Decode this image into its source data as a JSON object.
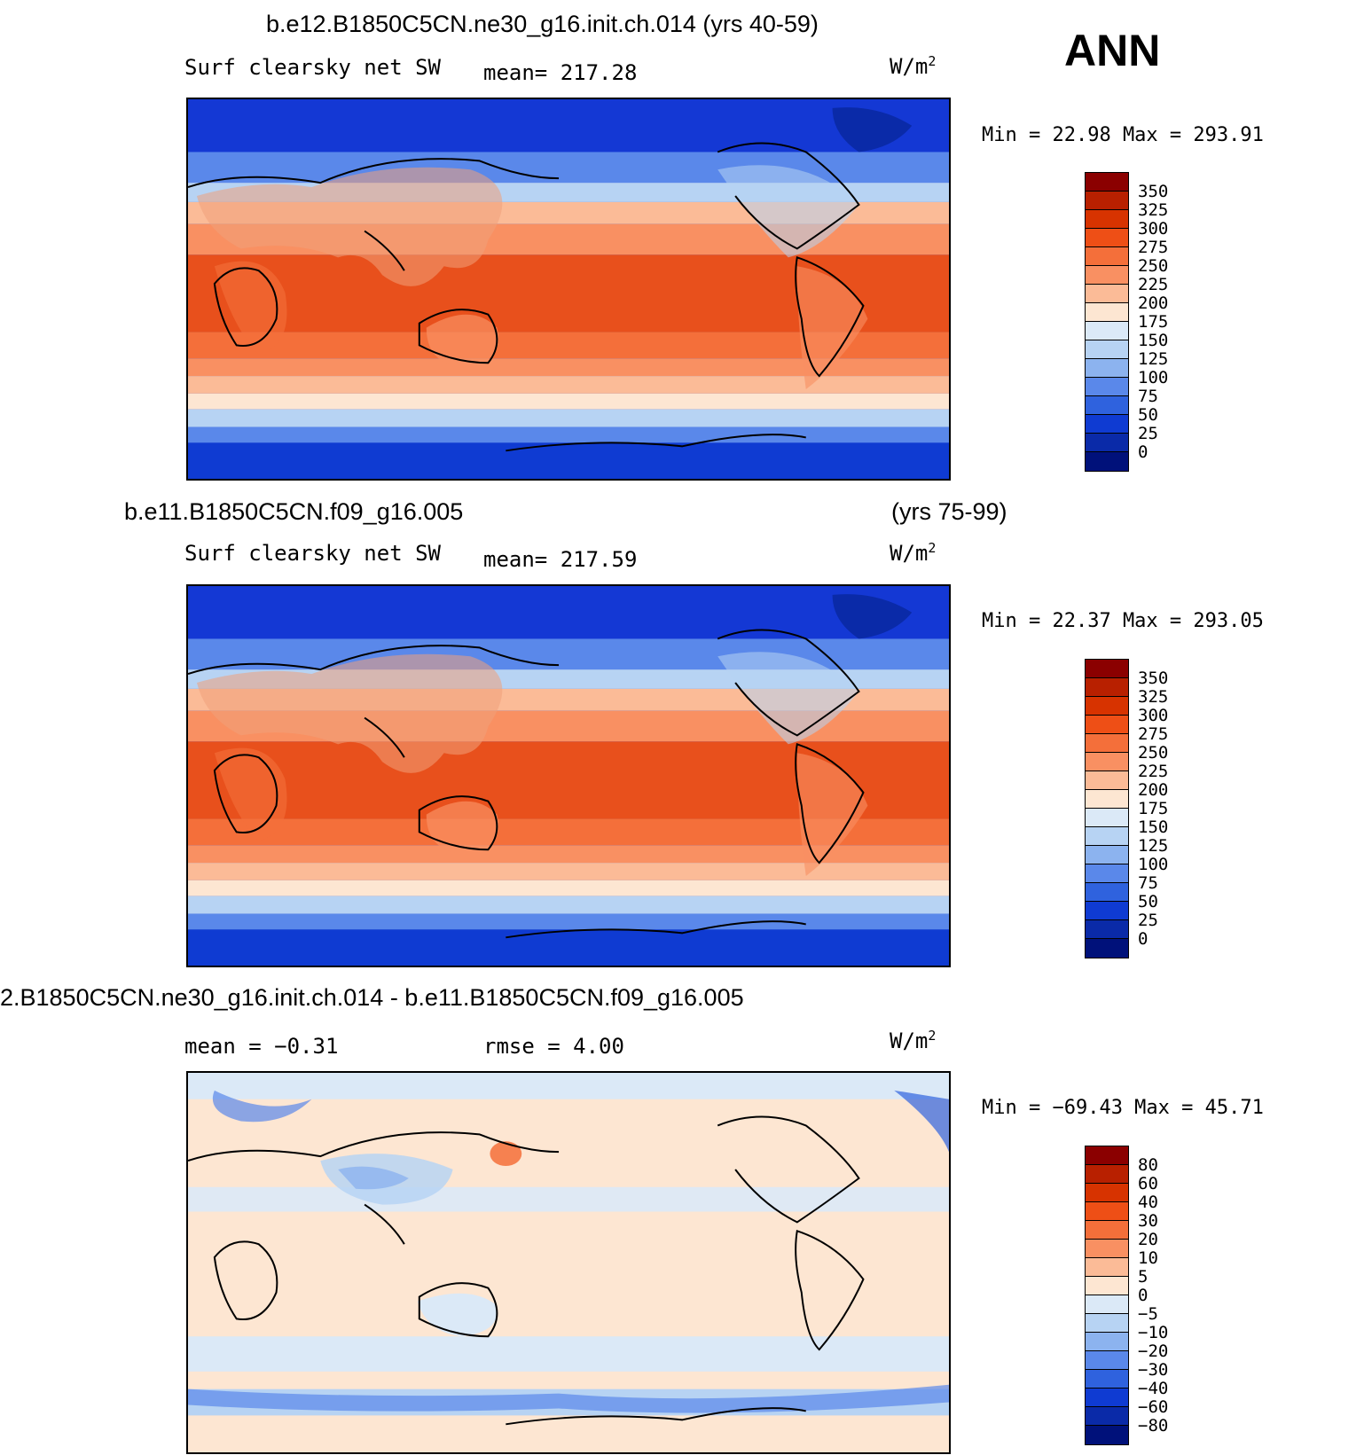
{
  "season": "ANN",
  "panels": [
    {
      "case": "b.e12.B1850C5CN.ne30_g16.init.ch.014 (yrs 40-59)",
      "case_years": "",
      "variable": "Surf clearsky net SW",
      "stat1": "mean= 217.28",
      "stat2": "",
      "units": "W/m",
      "units_sup": "2",
      "minmax": "Min =   22.98 Max = 293.91",
      "colorbar_labels": [
        "350",
        "325",
        "300",
        "275",
        "250",
        "225",
        "200",
        "175",
        "150",
        "125",
        "100",
        "75",
        "50",
        "25",
        "0"
      ]
    },
    {
      "case": "b.e11.B1850C5CN.f09_g16.005",
      "case_years": "(yrs 75-99)",
      "variable": "Surf clearsky net SW",
      "stat1": "mean= 217.59",
      "stat2": "",
      "units": "W/m",
      "units_sup": "2",
      "minmax": "Min =   22.37 Max = 293.05",
      "colorbar_labels": [
        "350",
        "325",
        "300",
        "275",
        "250",
        "225",
        "200",
        "175",
        "150",
        "125",
        "100",
        "75",
        "50",
        "25",
        "0"
      ]
    },
    {
      "case": "2.B1850C5CN.ne30_g16.init.ch.014 - b.e11.B1850C5CN.f09_g16.005",
      "case_years": "",
      "variable": "",
      "stat1": "mean =   −0.31",
      "stat2": "rmse =    4.00",
      "units": "W/m",
      "units_sup": "2",
      "minmax": "Min = −69.43 Max =   45.71",
      "colorbar_labels": [
        "80",
        "60",
        "40",
        "30",
        "20",
        "10",
        "5",
        "0",
        "−5",
        "−10",
        "−20",
        "−30",
        "−40",
        "−60",
        "−80"
      ]
    }
  ],
  "colors": {
    "abs_scale": [
      "#8b0000",
      "#b82000",
      "#d73300",
      "#ee4f16",
      "#f46f3a",
      "#f99062",
      "#fbbb97",
      "#fde6d2",
      "#dbe9f7",
      "#b7d3f3",
      "#8cb3ef",
      "#5a88ea",
      "#2f62de",
      "#0f3bd2",
      "#0a2aa8",
      "#00117a"
    ],
    "diff_scale": [
      "#8b0000",
      "#b82000",
      "#d73300",
      "#ee4f16",
      "#f46f3a",
      "#f99062",
      "#fbbb97",
      "#fde6d2",
      "#dbe9f7",
      "#b7d3f3",
      "#8cb3ef",
      "#5a88ea",
      "#2f62de",
      "#0f3bd2",
      "#0a2aa8",
      "#00117a"
    ]
  }
}
